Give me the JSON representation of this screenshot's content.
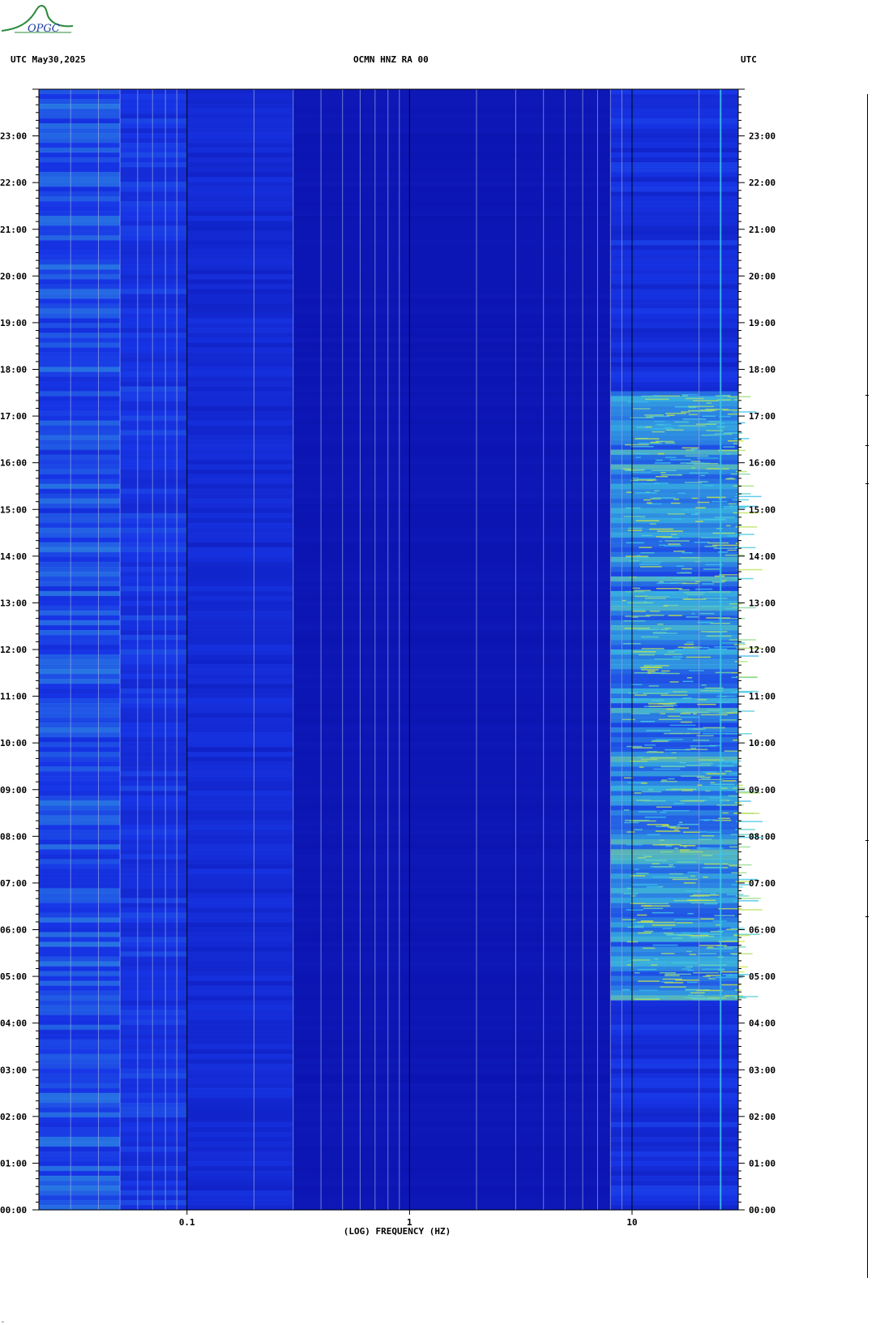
{
  "header": {
    "left_label": "UTC  May30,2025",
    "center_label": "OCMN HNZ RA 00",
    "right_label": "UTC"
  },
  "logo": {
    "text": "OPGC",
    "icon": "opgc-logo-icon"
  },
  "chart_data": {
    "type": "heatmap",
    "subtype": "spectrogram",
    "title": "OCMN HNZ RA 00",
    "date": "May30,2025",
    "xlabel": "(LOG) FREQUENCY (HZ)",
    "x_scale": "log",
    "xlim": [
      0.0216,
      30
    ],
    "x_ticks": [
      {
        "value": 0.1,
        "label": "0.1"
      },
      {
        "value": 1,
        "label": "1"
      },
      {
        "value": 10,
        "label": "10"
      }
    ],
    "ylabel": "UTC",
    "ylim_hours": [
      0,
      24
    ],
    "y_ticks": [
      "00:00",
      "01:00",
      "02:00",
      "03:00",
      "04:00",
      "05:00",
      "06:00",
      "07:00",
      "08:00",
      "09:00",
      "10:00",
      "11:00",
      "12:00",
      "13:00",
      "14:00",
      "15:00",
      "16:00",
      "17:00",
      "18:00",
      "19:00",
      "20:00",
      "21:00",
      "22:00",
      "23:00"
    ],
    "grid": true,
    "colors": {
      "low": "#0a0fa8",
      "mid": "#1a3cf0",
      "high": "#3fc8e8",
      "peak": "#d8e838",
      "grid_minor": "#9aa6e0",
      "grid_major": "#000000"
    },
    "bands": [
      {
        "f_start": 0.0216,
        "f_end": 0.05,
        "level": 0.55
      },
      {
        "f_start": 0.05,
        "f_end": 0.1,
        "level": 0.45
      },
      {
        "f_start": 0.1,
        "f_end": 0.3,
        "level": 0.35
      },
      {
        "f_start": 0.3,
        "f_end": 8,
        "level": 0.1
      },
      {
        "f_start": 8,
        "f_end": 30,
        "level": 0.7
      }
    ],
    "active_period_hours": [
      4.5,
      17.5
    ],
    "line_frequency_hz": 25
  },
  "footer": {
    "mark": "‸"
  }
}
